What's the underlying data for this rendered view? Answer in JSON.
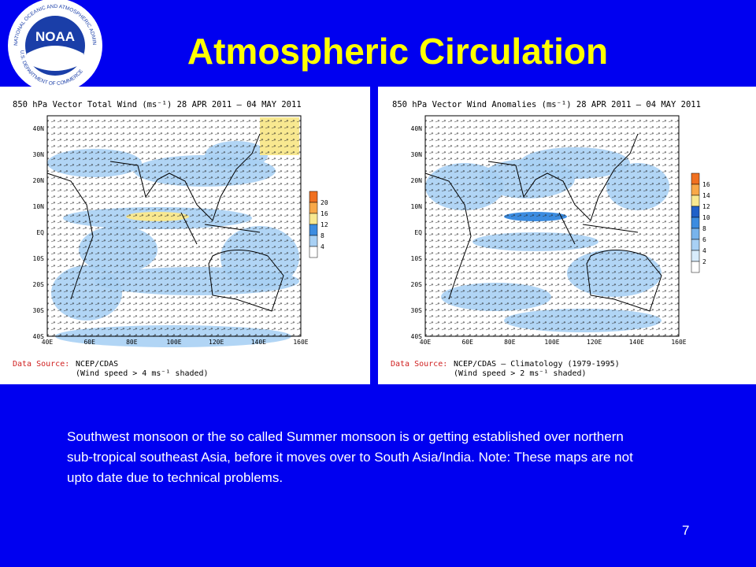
{
  "header": {
    "title": "Atmospheric Circulation",
    "logo": {
      "text": "NOAA",
      "ring_top": "NATIONAL OCEANIC AND ATMOSPHERIC ADMINISTRATION",
      "ring_bottom": "U.S. DEPARTMENT OF COMMERCE"
    }
  },
  "map_axes": {
    "lat_labels": [
      "40N",
      "30N",
      "20N",
      "10N",
      "EQ",
      "10S",
      "20S",
      "30S",
      "40S"
    ],
    "lon_labels": [
      "40E",
      "60E",
      "80E",
      "100E",
      "120E",
      "140E",
      "160E"
    ]
  },
  "panels": [
    {
      "title": "850 hPa Vector Total Wind (ms⁻¹) 28 APR 2011 – 04 MAY 2011",
      "colorbar_labels": [
        "20",
        "16",
        "12",
        "8",
        "4"
      ],
      "colorbar_colors": [
        "#f07020",
        "#f8a848",
        "#f8e890",
        "#3c8ce0",
        "#a8d0f4",
        "#ffffff"
      ],
      "source_label": "Data Source:",
      "source": "NCEP/CDAS",
      "note": "(Wind speed > 4 ms⁻¹ shaded)"
    },
    {
      "title": "850 hPa Vector Wind Anomalies (ms⁻¹) 28 APR 2011 – 04 MAY 2011",
      "colorbar_labels": [
        "16",
        "14",
        "12",
        "10",
        "8",
        "6",
        "4",
        "2"
      ],
      "colorbar_colors": [
        "#f07020",
        "#f8a848",
        "#f8e890",
        "#2060c8",
        "#3c8ce0",
        "#78b4ec",
        "#a8d0f4",
        "#d8ecfc",
        "#ffffff"
      ],
      "source_label": "Data Source:",
      "source": "NCEP/CDAS – Climatology (1979-1995)",
      "note": "(Wind speed > 2 ms⁻¹ shaded)"
    }
  ],
  "body": {
    "text": "Southwest monsoon or the so called Summer monsoon is or getting established over northern sub-tropical southeast Asia, before it moves over to South Asia/India. Note: These maps are not upto date due to technical problems.",
    "page_number": "7"
  }
}
